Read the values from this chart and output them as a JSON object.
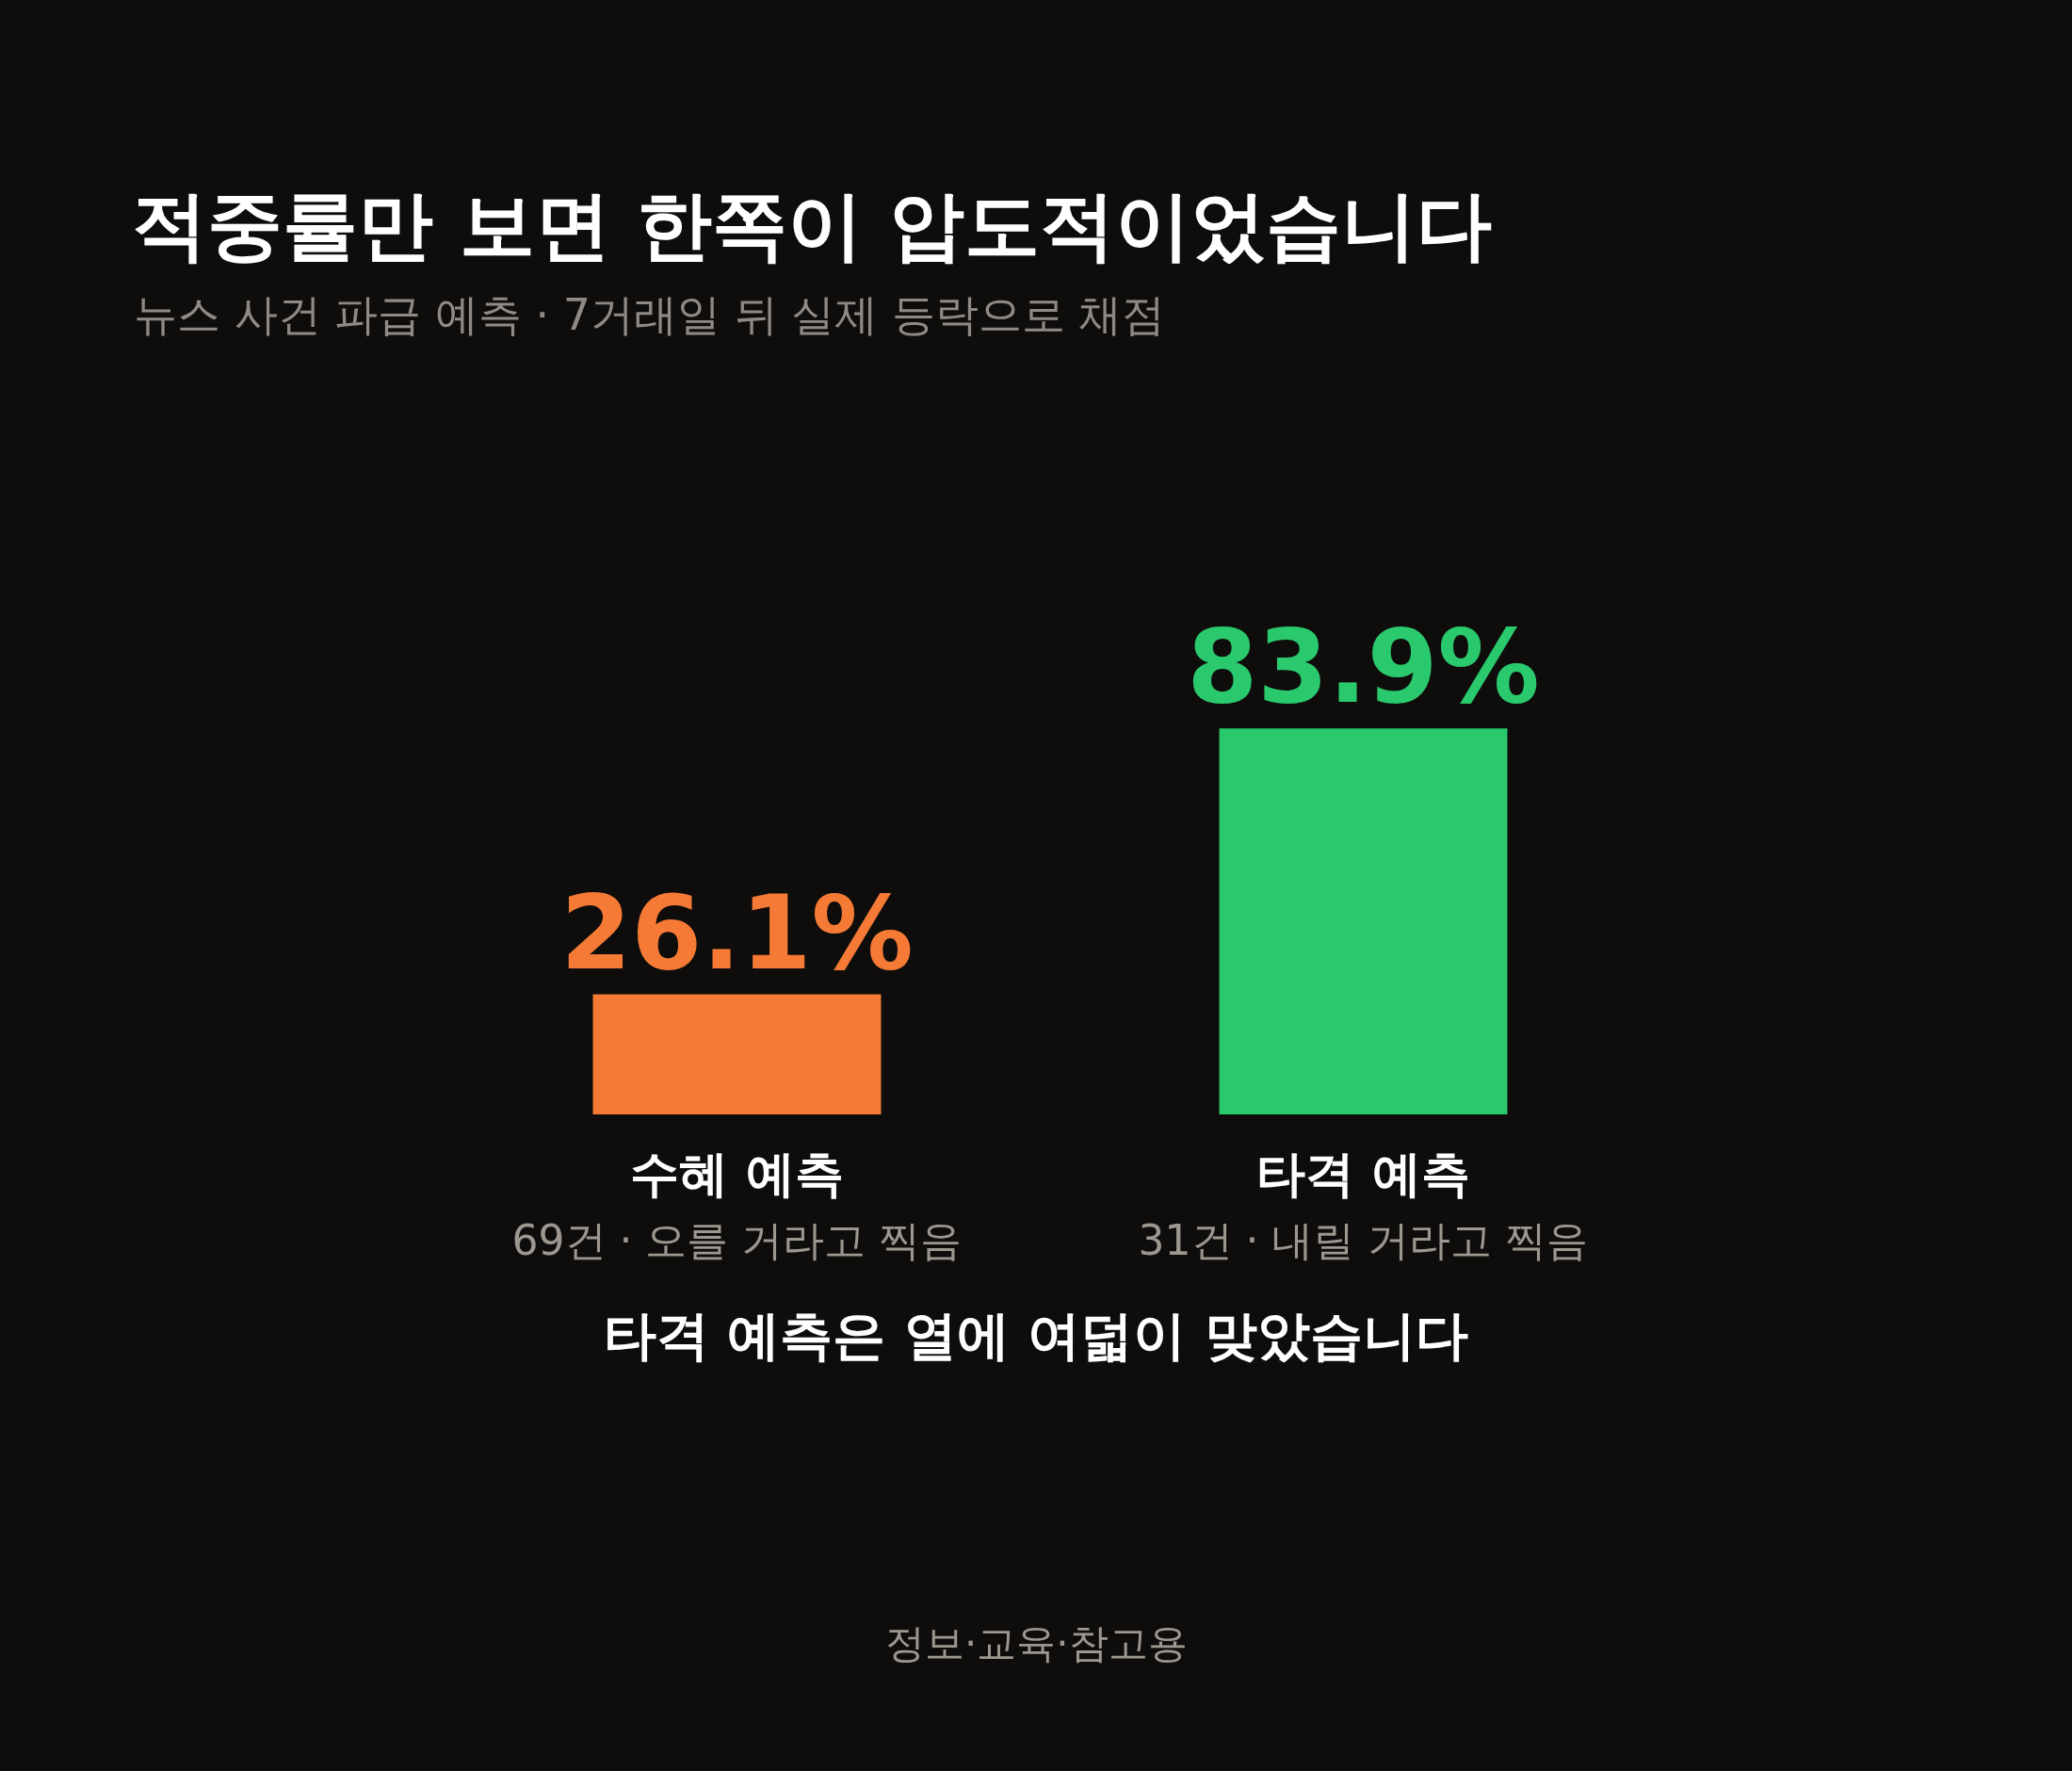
{
  "chart_data": {
    "type": "bar",
    "title": "적중률만 보면 한쪽이 압도적이었습니다",
    "subtitle": "뉴스 사건 파급 예측 · 7거래일 뒤 실제 등락으로 채점",
    "categories": [
      "수혜 예측\n69건 · 오를 거라고 찍음",
      "타격 예측\n31건 · 내릴 거라고 찍음"
    ],
    "values": [
      26.1,
      83.9
    ],
    "colors": [
      "#f47a35",
      "#2ac96d"
    ],
    "value_labels": [
      "26.1%",
      "83.9%"
    ],
    "annotations": [
      "타격 예측은 열에 여덟이 맞았습니다",
      "정보·교육·참고용"
    ]
  }
}
